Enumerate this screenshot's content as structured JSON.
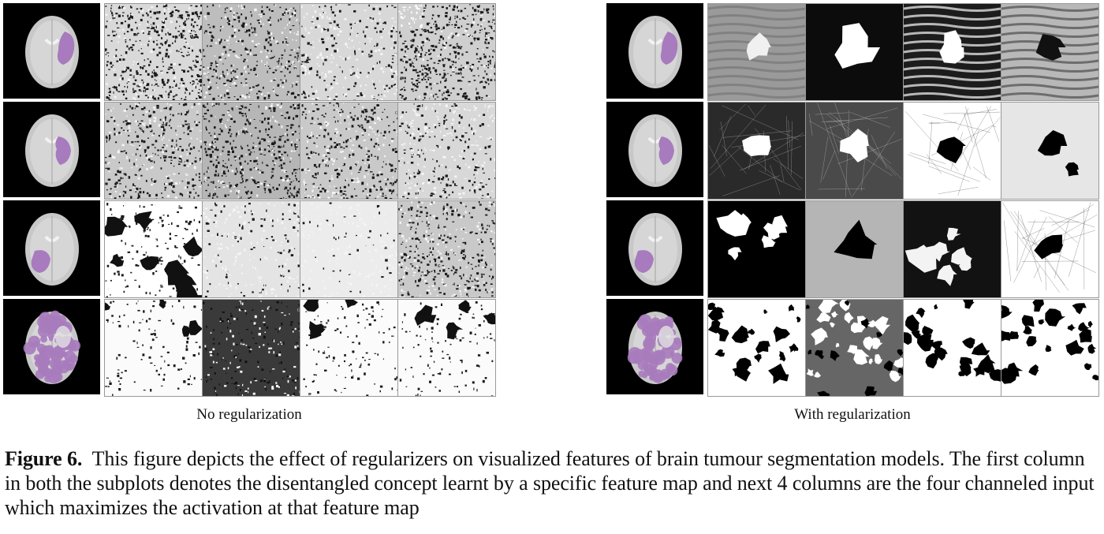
{
  "subplots": [
    {
      "id": "left",
      "caption": "No regularization",
      "rows": [
        {
          "concept": "brain-tumour-right",
          "features": [
            "dense-noise-dark",
            "noise-soft",
            "noise-light",
            "noise-dark-corner"
          ]
        },
        {
          "concept": "brain-tumour-right-lower",
          "features": [
            "noise-medium",
            "noise-dark-center",
            "noise-medium",
            "noise-light"
          ]
        },
        {
          "concept": "brain-tumour-left-lower",
          "features": [
            "blobs-white-black",
            "noise-faint",
            "noise-very-faint",
            "noise-medium"
          ]
        },
        {
          "concept": "brain-tumour-diffuse",
          "features": [
            "mostly-white-speckle",
            "mostly-dark-speckle",
            "mostly-white-speckle",
            "mostly-white-speckle"
          ]
        }
      ]
    },
    {
      "id": "right",
      "caption": "With regularization",
      "rows": [
        {
          "concept": "brain-tumour-right",
          "features": [
            "gray-stripes-shape",
            "black-white-blob",
            "dark-stripes-shape",
            "gray-stripes-dark-blob"
          ]
        },
        {
          "concept": "brain-tumour-right-lower",
          "features": [
            "dark-white-blob",
            "gray-white-blob",
            "white-black-blob",
            "light-gray-blob"
          ]
        },
        {
          "concept": "brain-tumour-left-lower",
          "features": [
            "black-white-patches",
            "gray-black-blob",
            "black-white-swirl",
            "white-black-blob"
          ]
        },
        {
          "concept": "brain-tumour-diffuse",
          "features": [
            "white-black-specks",
            "gray-mixed-specks",
            "white-black-specks",
            "white-black-specks"
          ]
        }
      ]
    }
  ],
  "figure": {
    "label": "Figure 6.",
    "text": "This figure depicts the effect of regularizers on visualized features of brain tumour segmentation models. The first column in both the subplots denotes the disentangled concept learnt by a specific feature map and next 4 columns are the four channeled input which maximizes the activation at that feature map"
  },
  "colors": {
    "tumour": "#a77bbd",
    "brain": "#c8c8c8",
    "background": "#000000"
  }
}
